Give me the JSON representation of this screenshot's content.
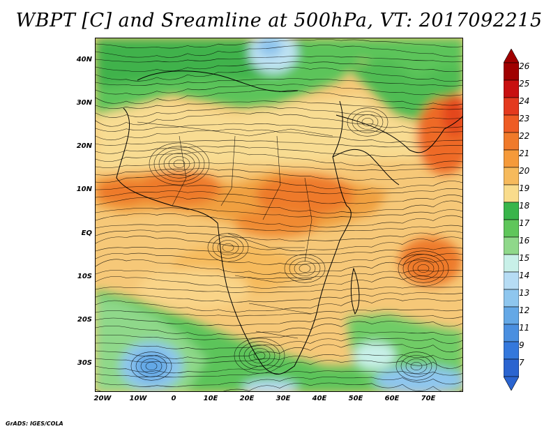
{
  "title": "WBPT [C] and Sreamline at 500hPa, VT: 2017092215",
  "latitude_labels": [
    "40N",
    "30N",
    "20N",
    "10N",
    "EQ",
    "10S",
    "20S",
    "30S"
  ],
  "longitude_labels": [
    "20W",
    "10W",
    "0",
    "10E",
    "20E",
    "30E",
    "40E",
    "50E",
    "60E",
    "70E"
  ],
  "colorbar": {
    "labels": [
      "26",
      "25",
      "24",
      "23",
      "22",
      "21",
      "20",
      "19",
      "18",
      "17",
      "16",
      "15",
      "14",
      "13",
      "12",
      "11",
      "9",
      "7"
    ],
    "colors": [
      "#a00000",
      "#c81010",
      "#e43a1e",
      "#ee5c24",
      "#f07a2a",
      "#f59a3a",
      "#f6ba5c",
      "#f9dc8c",
      "#39b54a",
      "#5fc65a",
      "#8fd88a",
      "#c8f0e8",
      "#b6dcf4",
      "#8ec6ee",
      "#64a8e6",
      "#4a8fe0",
      "#3478dc",
      "#2a64d0"
    ],
    "arrow_top_color": "#a00000",
    "arrow_bottom_color": "#2a64d0"
  },
  "credit": "GrADS: IGES/COLA"
}
